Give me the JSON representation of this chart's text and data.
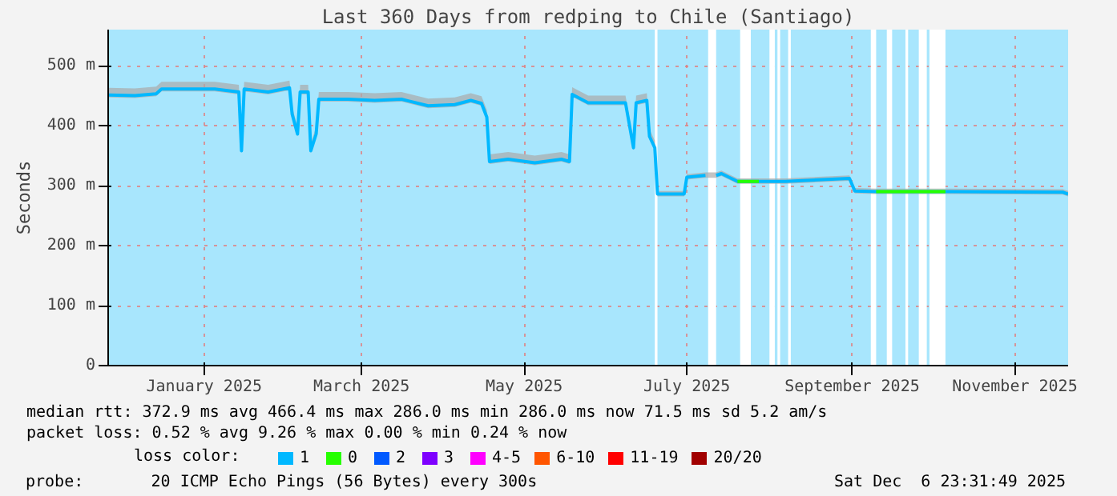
{
  "chart_data": {
    "type": "line",
    "title": "Last 360 Days from redping to Chile (Santiago)",
    "ylabel": "Seconds",
    "x": [
      "2024-12-11",
      "2024-12-21",
      "2024-12-29",
      "2024-12-31",
      "2025-01-20",
      "2025-01-29",
      "2025-01-30",
      "2025-01-31",
      "2025-02-09",
      "2025-02-17",
      "2025-02-18",
      "2025-02-20",
      "2025-02-21",
      "2025-02-24",
      "2025-02-25",
      "2025-02-27",
      "2025-02-28",
      "2025-03-11",
      "2025-03-21",
      "2025-03-31",
      "2025-04-10",
      "2025-04-20",
      "2025-04-26",
      "2025-04-30",
      "2025-05-02",
      "2025-05-03",
      "2025-05-10",
      "2025-05-20",
      "2025-05-30",
      "2025-06-02",
      "2025-06-03",
      "2025-06-09",
      "2025-06-23",
      "2025-06-26",
      "2025-06-27",
      "2025-07-01",
      "2025-07-02",
      "2025-07-04",
      "2025-07-05",
      "2025-07-15",
      "2025-07-16",
      "2025-07-23",
      "2025-07-25",
      "2025-07-27",
      "2025-07-29",
      "2025-08-04",
      "2025-08-12",
      "2025-08-22",
      "2025-09-15",
      "2025-09-17",
      "2025-09-25",
      "2025-10-21",
      "2025-12-04",
      "2025-12-06"
    ],
    "series": [
      {
        "name": "1",
        "color": "#00b8ff",
        "values": [
          451,
          450,
          453,
          461,
          461,
          456,
          358,
          461,
          456,
          463,
          419,
          386,
          456,
          456,
          358,
          386,
          444,
          444,
          442,
          444,
          433,
          435,
          442,
          437,
          414,
          340,
          344,
          338,
          344,
          340,
          452,
          438,
          438,
          363,
          438,
          442,
          382,
          363,
          286,
          286,
          314,
          317,
          null,
          317,
          320,
          307,
          307,
          307,
          312,
          291,
          290,
          290,
          289,
          286
        ],
        "lower": [
          447,
          446,
          449,
          457,
          457,
          452,
          354,
          457,
          452,
          459,
          415,
          382,
          452,
          452,
          354,
          382,
          440,
          440,
          438,
          440,
          429,
          431,
          438,
          433,
          410,
          336,
          340,
          334,
          340,
          336,
          448,
          434,
          434,
          359,
          434,
          438,
          378,
          359,
          282,
          282,
          310,
          313,
          null,
          313,
          316,
          303,
          303,
          303,
          308,
          287,
          286,
          286,
          285,
          282
        ],
        "upper": [
          463,
          462,
          465,
          473,
          473,
          468,
          370,
          473,
          468,
          475,
          431,
          398,
          468,
          468,
          370,
          398,
          456,
          456,
          454,
          456,
          445,
          447,
          454,
          449,
          426,
          352,
          356,
          350,
          356,
          352,
          464,
          450,
          450,
          375,
          450,
          454,
          394,
          375,
          291,
          291,
          319,
          322,
          null,
          322,
          325,
          312,
          312,
          312,
          317,
          296,
          295,
          295,
          294,
          291
        ]
      },
      {
        "name": "0",
        "color": "#26ff00",
        "values": [
          null,
          null,
          null,
          null,
          null,
          null,
          null,
          null,
          null,
          null,
          null,
          null,
          null,
          null,
          null,
          null,
          null,
          null,
          null,
          null,
          null,
          null,
          null,
          null,
          null,
          null,
          null,
          null,
          null,
          null,
          null,
          null,
          null,
          null,
          null,
          null,
          null,
          null,
          null,
          null,
          null,
          null,
          null,
          null,
          null,
          307,
          307,
          null,
          null,
          null,
          290,
          290,
          null,
          null
        ]
      },
      {
        "name": "2",
        "color": "#0059ff",
        "values": [
          null,
          null,
          null,
          null,
          null,
          null,
          null,
          null,
          null,
          null,
          null,
          null,
          null,
          null,
          null,
          null,
          null,
          null,
          null,
          null,
          null,
          null,
          null,
          null,
          null,
          null,
          null,
          null,
          null,
          null,
          null,
          null,
          null,
          null,
          null,
          null,
          null,
          null,
          null,
          null,
          null,
          null,
          null,
          null,
          null,
          null,
          null,
          null,
          null,
          null,
          null,
          null,
          null,
          null
        ]
      },
      {
        "name": "3",
        "color": "#7e00ff",
        "values": [
          null,
          null,
          null,
          null,
          null,
          null,
          null,
          null,
          null,
          null,
          null,
          null,
          null,
          null,
          null,
          null,
          null,
          null,
          null,
          null,
          null,
          null,
          null,
          null,
          null,
          null,
          null,
          null,
          null,
          null,
          null,
          null,
          null,
          null,
          null,
          null,
          null,
          null,
          null,
          null,
          null,
          null,
          null,
          null,
          null,
          null,
          null,
          null,
          null,
          null,
          null,
          null,
          null,
          null
        ]
      },
      {
        "name": "4-5",
        "color": "#ff00ff",
        "values": [
          null,
          null,
          null,
          null,
          null,
          null,
          null,
          null,
          null,
          null,
          null,
          null,
          null,
          null,
          null,
          null,
          null,
          null,
          null,
          null,
          null,
          null,
          null,
          null,
          null,
          null,
          null,
          null,
          null,
          null,
          null,
          null,
          null,
          null,
          null,
          null,
          null,
          null,
          null,
          null,
          null,
          null,
          null,
          null,
          null,
          null,
          null,
          null,
          null,
          null,
          null,
          null,
          null,
          null
        ]
      },
      {
        "name": "6-10",
        "color": "#ff5500",
        "values": [
          null,
          null,
          null,
          null,
          null,
          null,
          null,
          null,
          null,
          null,
          null,
          null,
          null,
          null,
          null,
          null,
          null,
          null,
          null,
          null,
          null,
          null,
          null,
          null,
          null,
          null,
          null,
          null,
          null,
          null,
          null,
          null,
          null,
          null,
          null,
          null,
          null,
          null,
          null,
          null,
          null,
          null,
          null,
          null,
          null,
          null,
          null,
          null,
          null,
          null,
          null,
          null,
          null,
          null
        ]
      },
      {
        "name": "11-19",
        "color": "#ff0000",
        "values": [
          null,
          null,
          null,
          null,
          null,
          null,
          null,
          null,
          null,
          null,
          null,
          null,
          null,
          null,
          null,
          null,
          null,
          null,
          null,
          null,
          null,
          null,
          null,
          null,
          null,
          null,
          null,
          null,
          null,
          null,
          null,
          null,
          null,
          null,
          null,
          null,
          null,
          null,
          null,
          null,
          null,
          null,
          null,
          null,
          null,
          null,
          null,
          null,
          null,
          null,
          null,
          null,
          null,
          null
        ]
      },
      {
        "name": "20/20",
        "color": "#a10000",
        "values": [
          null,
          null,
          null,
          null,
          null,
          null,
          null,
          null,
          null,
          null,
          null,
          null,
          null,
          null,
          null,
          null,
          null,
          null,
          null,
          null,
          null,
          null,
          null,
          null,
          null,
          null,
          null,
          null,
          null,
          null,
          null,
          null,
          null,
          null,
          null,
          null,
          null,
          null,
          null,
          null,
          null,
          null,
          null,
          null,
          null,
          null,
          null,
          null,
          null,
          null,
          null,
          null,
          null,
          null
        ]
      }
    ],
    "legend_title": "loss color:",
    "legend": "bottom",
    "xlim": [
      "2024-12-11",
      "2025-12-06"
    ],
    "xticks": [
      {
        "value": "2025-01-16",
        "label": "January 2025"
      },
      {
        "value": "2025-03-16",
        "label": "March 2025"
      },
      {
        "value": "2025-05-16",
        "label": "May 2025"
      },
      {
        "value": "2025-07-16",
        "label": "July 2025"
      },
      {
        "value": "2025-09-16",
        "label": "September 2025"
      },
      {
        "value": "2025-11-16",
        "label": "November 2025"
      }
    ],
    "ylim": [
      0,
      560
    ],
    "yticks": [
      0,
      {
        "value": 100,
        "label": "100 m"
      },
      {
        "value": 200,
        "label": "200 m"
      },
      {
        "value": 300,
        "label": "300 m"
      },
      {
        "value": 400,
        "label": "400 m"
      },
      {
        "value": 500,
        "label": "500 m"
      }
    ],
    "grid": true,
    "line_style": "solid",
    "bands": [
      {
        "axis": "x",
        "from": "2025-07-04",
        "to": "2025-07-05",
        "color": "#ffffff"
      },
      {
        "axis": "x",
        "from": "2025-07-24",
        "to": "2025-07-27",
        "color": "#ffffff"
      },
      {
        "axis": "x",
        "from": "2025-08-05",
        "to": "2025-08-09",
        "color": "#ffffff"
      },
      {
        "axis": "x",
        "from": "2025-08-16",
        "to": "2025-08-18",
        "color": "#ffffff"
      },
      {
        "axis": "x",
        "from": "2025-08-19",
        "to": "2025-08-20",
        "color": "#ffffff"
      },
      {
        "axis": "x",
        "from": "2025-08-23",
        "to": "2025-08-24",
        "color": "#ffffff"
      },
      {
        "axis": "x",
        "from": "2025-09-23",
        "to": "2025-09-25",
        "color": "#ffffff"
      },
      {
        "axis": "x",
        "from": "2025-09-29",
        "to": "2025-10-01",
        "color": "#ffffff"
      },
      {
        "axis": "x",
        "from": "2025-10-06",
        "to": "2025-10-07",
        "color": "#ffffff"
      },
      {
        "axis": "x",
        "from": "2025-10-11",
        "to": "2025-10-14",
        "color": "#ffffff"
      },
      {
        "axis": "x",
        "from": "2025-10-15",
        "to": "2025-10-21",
        "color": "#ffffff"
      }
    ],
    "annotations": [
      "median rtt:  372.9 ms avg  466.4 ms max  286.0 ms min  286.0 ms now  71.5 ms sd  5.2   am/s",
      "packet loss: 0.52 % avg  9.26 % max  0.00 % min  0.24 % now",
      "probe:       20 ICMP Echo Pings (56 Bytes) every 300s",
      "Sat Dec  6 23:31:49 2025"
    ]
  }
}
